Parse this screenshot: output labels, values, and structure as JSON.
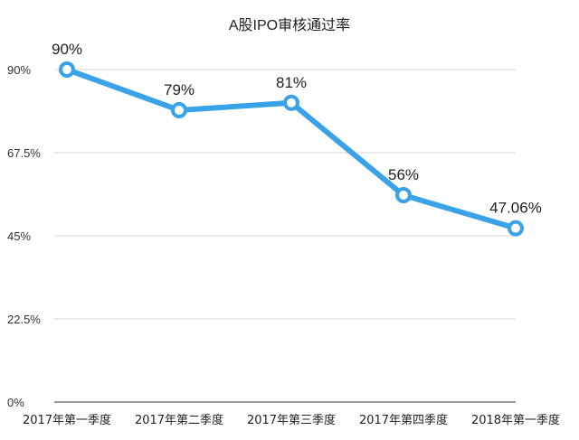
{
  "chart_data": {
    "type": "line",
    "title": "A股IPO审核通过率",
    "xlabel": "",
    "ylabel": "",
    "categories": [
      "2017年第一季度",
      "2017年第二季度",
      "2017年第三季度",
      "2017年第四季度",
      "2018年第一季度"
    ],
    "series": [
      {
        "values": [
          90,
          79,
          81,
          56,
          47.06
        ]
      }
    ],
    "data_labels": [
      "90%",
      "79%",
      "81%",
      "56%",
      "47.06%"
    ],
    "y_ticks": [
      0,
      22.5,
      45,
      67.5,
      90
    ],
    "y_tick_labels": [
      "0%",
      "22.5%",
      "45%",
      "67.5%",
      "90%"
    ],
    "ylim": [
      0,
      90
    ],
    "grid": true,
    "legend": "none",
    "colors": {
      "line": "#3aa3e8",
      "marker_fill": "#ffffff",
      "grid": "#d6d6d6",
      "axis": "#333333"
    }
  }
}
